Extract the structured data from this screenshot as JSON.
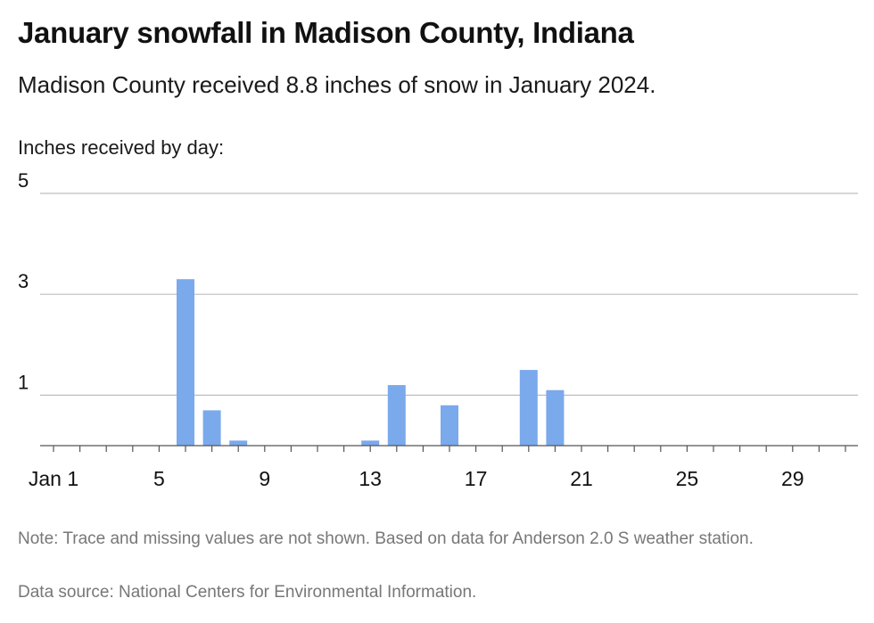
{
  "title": "January snowfall in Madison County, Indiana",
  "subtitle": "Madison County received 8.8 inches of snow in January 2024.",
  "note": "Note: Trace and missing values are not shown. Based on data for Anderson 2.0 S weather station.",
  "source": "Data source: National Centers for Environmental Information.",
  "colors": {
    "bar": "#7aa9ec",
    "grid": "#bdbdbd",
    "axis": "#555555"
  },
  "chart_data": {
    "type": "bar",
    "ylabel": "Inches received by day:",
    "x_tick_labels": [
      "Jan 1",
      "5",
      "9",
      "13",
      "17",
      "21",
      "25",
      "29"
    ],
    "x_tick_days": [
      1,
      5,
      9,
      13,
      17,
      21,
      25,
      29
    ],
    "y_ticks": [
      1,
      3,
      5
    ],
    "ylim": [
      0,
      5
    ],
    "days": [
      1,
      2,
      3,
      4,
      5,
      6,
      7,
      8,
      9,
      10,
      11,
      12,
      13,
      14,
      15,
      16,
      17,
      18,
      19,
      20,
      21,
      22,
      23,
      24,
      25,
      26,
      27,
      28,
      29,
      30,
      31
    ],
    "values": [
      0,
      0,
      0,
      0,
      0,
      3.3,
      0.7,
      0.1,
      0,
      0,
      0,
      0,
      0.1,
      1.2,
      0,
      0.8,
      0,
      0,
      1.5,
      1.1,
      0,
      0,
      0,
      0,
      0,
      0,
      0,
      0,
      0,
      0,
      0
    ],
    "grid": true,
    "legend": "none"
  }
}
